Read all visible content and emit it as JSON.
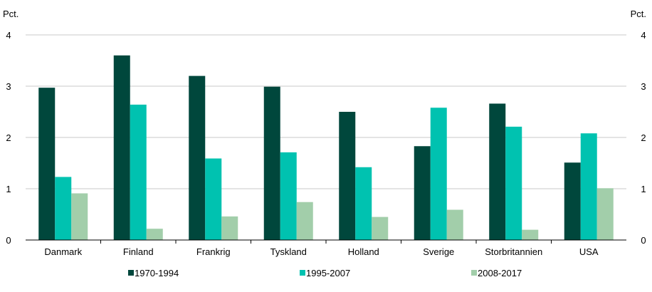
{
  "chart_data": {
    "type": "bar",
    "categories": [
      "Danmark",
      "Finland",
      "Frankrig",
      "Tyskland",
      "Holland",
      "Sverige",
      "Storbritannien",
      "USA"
    ],
    "series": [
      {
        "name": "1970-1994",
        "color": "#00473c",
        "values": [
          2.97,
          3.6,
          3.2,
          2.99,
          2.5,
          1.83,
          2.66,
          1.51
        ]
      },
      {
        "name": "1995-2007",
        "color": "#00c2b0",
        "values": [
          1.23,
          2.64,
          1.59,
          1.71,
          1.42,
          2.58,
          2.21,
          2.08
        ]
      },
      {
        "name": "2008-2017",
        "color": "#a2ceaa",
        "values": [
          0.91,
          0.22,
          0.46,
          0.74,
          0.45,
          0.59,
          0.2,
          1.01
        ]
      }
    ],
    "yticks": [
      "0",
      "1",
      "2",
      "3",
      "4"
    ],
    "ylim": [
      0,
      4
    ],
    "ylabel_left": "Pct.",
    "ylabel_right": "Pct.",
    "grid": true,
    "legend_position": "bottom"
  }
}
